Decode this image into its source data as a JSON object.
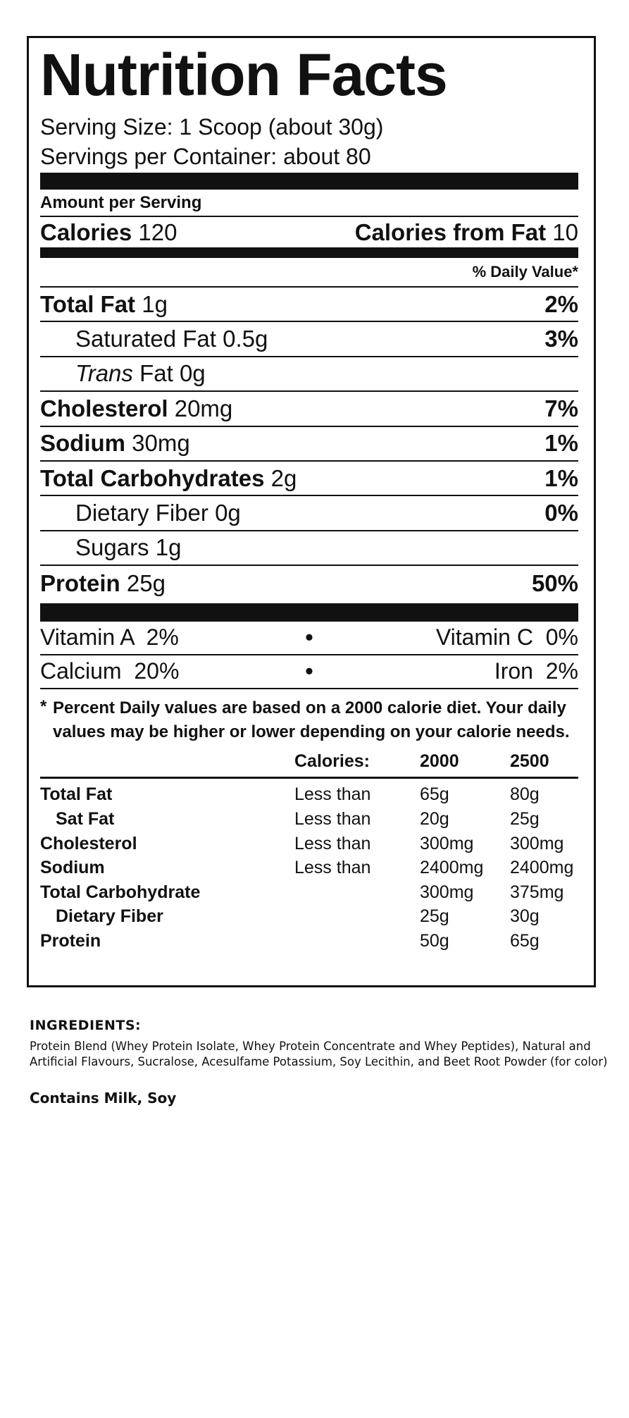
{
  "label": {
    "title": "Nutrition Facts",
    "serving_size": "Serving Size: 1 Scoop (about 30g)",
    "servings_per_container": "Servings per Container: about 80",
    "amount_per_serving": "Amount per Serving",
    "calories_label": "Calories",
    "calories_value": "120",
    "calories_from_fat_label": "Calories from Fat",
    "calories_from_fat_value": "10",
    "daily_value_header": "% Daily Value*",
    "nutrients": [
      {
        "name": "Total Fat",
        "amount": "1g",
        "dv": "2%",
        "bold": true,
        "indent": false
      },
      {
        "name": "Saturated Fat",
        "amount": "0.5g",
        "dv": "3%",
        "bold": false,
        "indent": true
      },
      {
        "name": "Trans",
        "name_rest": "Fat",
        "amount": "0g",
        "dv": "",
        "bold": false,
        "indent": true
      },
      {
        "name": "Cholesterol",
        "amount": "20mg",
        "dv": "7%",
        "bold": true,
        "indent": false
      },
      {
        "name": "Sodium",
        "amount": "30mg",
        "dv": "1%",
        "bold": true,
        "indent": false
      },
      {
        "name": "Total Carbohydrates",
        "amount": "2g",
        "dv": "1%",
        "bold": true,
        "indent": false
      },
      {
        "name": "Dietary Fiber",
        "amount": "0g",
        "dv": "0%",
        "bold": false,
        "indent": true
      },
      {
        "name": "Sugars",
        "amount": "1g",
        "dv": "",
        "bold": false,
        "indent": true
      },
      {
        "name": "Protein",
        "amount": "25g",
        "dv": "50%",
        "bold": true,
        "indent": false
      }
    ],
    "vitamins": [
      {
        "left": "Vitamin A  2%",
        "bullet": "•",
        "right": "Vitamin C  0%"
      },
      {
        "left": "Calcium  20%",
        "bullet": "•",
        "right": "Iron  2%"
      }
    ],
    "footnote_star": "*",
    "footnote": "Percent Daily values are based on a 2000 calorie diet. Your daily values may be higher or lower depending on your calorie needs.",
    "table_header": [
      "",
      "Calories:",
      "2000",
      "2500"
    ],
    "table_rows": [
      {
        "cells": [
          "Total Fat",
          "Less than",
          "65g",
          "80g"
        ],
        "indent": false
      },
      {
        "cells": [
          "Sat Fat",
          "Less than",
          "20g",
          "25g"
        ],
        "indent": true
      },
      {
        "cells": [
          "Cholesterol",
          "Less than",
          "300mg",
          "300mg"
        ],
        "indent": false
      },
      {
        "cells": [
          "Sodium",
          "Less than",
          "2400mg",
          "2400mg"
        ],
        "indent": false
      },
      {
        "cells": [
          "Total Carbohydrate",
          "",
          "300mg",
          "375mg"
        ],
        "indent": false
      },
      {
        "cells": [
          "Dietary Fiber",
          "",
          "25g",
          "30g"
        ],
        "indent": true
      },
      {
        "cells": [
          "Protein",
          "",
          "50g",
          "65g"
        ],
        "indent": false
      }
    ]
  },
  "ingredients": {
    "heading": "INGREDIENTS:",
    "text": "Protein Blend (Whey Protein Isolate, Whey Protein Concentrate and Whey Peptides), Natural and Artificial Flavours, Sucralose, Acesulfame Potassium, Soy Lecithin, and Beet Root Powder (for color)",
    "allergens": "Contains Milk, Soy"
  }
}
